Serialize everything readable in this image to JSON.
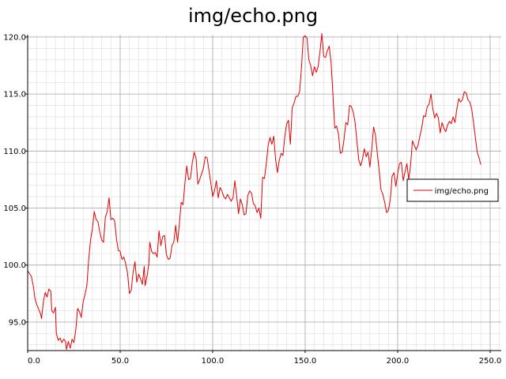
{
  "chart_data": {
    "type": "line",
    "title": "img/echo.png",
    "xlabel": "",
    "ylabel": "",
    "xlim": [
      0,
      256
    ],
    "ylim": [
      92.5,
      120.2
    ],
    "grid": true,
    "legend_position": "right",
    "x_ticks": [
      {
        "value": 0,
        "label": "0.0"
      },
      {
        "value": 50,
        "label": "50.0"
      },
      {
        "value": 100,
        "label": "100.0"
      },
      {
        "value": 150,
        "label": "150.0"
      },
      {
        "value": 200,
        "label": "200.0"
      },
      {
        "value": 250,
        "label": "250.0"
      }
    ],
    "y_ticks": [
      {
        "value": 95,
        "label": "95.0"
      },
      {
        "value": 100,
        "label": "100.0"
      },
      {
        "value": 105,
        "label": "105.0"
      },
      {
        "value": 110,
        "label": "110.0"
      },
      {
        "value": 115,
        "label": "115.0"
      },
      {
        "value": 120,
        "label": "120.0"
      }
    ],
    "series": [
      {
        "name": "img/echo.png",
        "color": "#e00000",
        "points": [
          [
            0,
            99.5
          ],
          [
            2,
            99.0
          ],
          [
            3,
            98.2
          ],
          [
            4,
            97.0
          ],
          [
            5,
            96.5
          ],
          [
            7,
            95.7
          ],
          [
            7.5,
            95.3
          ],
          [
            8.5,
            96.8
          ],
          [
            9.5,
            97.6
          ],
          [
            10.5,
            97.2
          ],
          [
            11.5,
            97.9
          ],
          [
            12.5,
            97.7
          ],
          [
            13,
            96.0
          ],
          [
            14,
            95.8
          ],
          [
            15,
            96.3
          ],
          [
            15.5,
            94.0
          ],
          [
            16.5,
            93.4
          ],
          [
            17.5,
            93.6
          ],
          [
            18.5,
            93.2
          ],
          [
            19.5,
            93.5
          ],
          [
            20.5,
            93.3
          ],
          [
            21,
            92.6
          ],
          [
            22,
            93.3
          ],
          [
            23,
            92.7
          ],
          [
            24,
            93.5
          ],
          [
            25,
            93.2
          ],
          [
            26,
            94.3
          ],
          [
            27,
            96.2
          ],
          [
            28,
            95.9
          ],
          [
            29,
            95.4
          ],
          [
            30,
            96.8
          ],
          [
            31,
            97.4
          ],
          [
            32,
            98.2
          ],
          [
            33,
            100.5
          ],
          [
            34,
            102.2
          ],
          [
            35,
            103.2
          ],
          [
            36,
            104.7
          ],
          [
            37,
            104.0
          ],
          [
            38,
            103.8
          ],
          [
            39,
            102.9
          ],
          [
            40,
            102.2
          ],
          [
            41,
            102.0
          ],
          [
            42,
            104.2
          ],
          [
            43,
            104.7
          ],
          [
            44,
            105.9
          ],
          [
            45,
            104.0
          ],
          [
            46,
            104.1
          ],
          [
            47,
            103.9
          ],
          [
            48,
            102.3
          ],
          [
            49,
            101.3
          ],
          [
            50,
            101.2
          ],
          [
            51,
            100.5
          ],
          [
            52,
            100.7
          ],
          [
            53,
            100.1
          ],
          [
            54,
            99.3
          ],
          [
            55,
            97.5
          ],
          [
            56,
            97.8
          ],
          [
            57,
            99.4
          ],
          [
            58,
            100.3
          ],
          [
            59,
            98.5
          ],
          [
            60,
            99.2
          ],
          [
            61,
            98.8
          ],
          [
            62,
            98.3
          ],
          [
            63,
            99.9
          ],
          [
            63.5,
            98.2
          ],
          [
            64.5,
            99.0
          ],
          [
            65.5,
            100.1
          ],
          [
            66,
            102.0
          ],
          [
            67,
            101.2
          ],
          [
            68,
            101.0
          ],
          [
            69,
            101.1
          ],
          [
            70,
            100.7
          ],
          [
            71,
            103.0
          ],
          [
            72,
            101.7
          ],
          [
            73,
            102.5
          ],
          [
            74,
            102.6
          ],
          [
            75,
            100.9
          ],
          [
            76,
            100.5
          ],
          [
            77,
            100.6
          ],
          [
            78,
            101.7
          ],
          [
            79,
            102.0
          ],
          [
            80,
            103.5
          ],
          [
            81,
            102.0
          ],
          [
            82,
            103.6
          ],
          [
            83,
            105.5
          ],
          [
            84,
            105.3
          ],
          [
            85,
            107.2
          ],
          [
            86,
            108.7
          ],
          [
            87,
            107.5
          ],
          [
            88,
            107.6
          ],
          [
            89,
            109.0
          ],
          [
            90,
            109.9
          ],
          [
            91,
            109.4
          ],
          [
            92,
            107.1
          ],
          [
            93,
            107.5
          ],
          [
            94,
            108.0
          ],
          [
            95,
            108.5
          ],
          [
            96,
            109.5
          ],
          [
            97,
            109.4
          ],
          [
            98,
            108.3
          ],
          [
            99,
            107.2
          ],
          [
            100,
            106.0
          ],
          [
            101,
            106.5
          ],
          [
            102,
            107.4
          ],
          [
            103,
            105.9
          ],
          [
            104,
            106.8
          ],
          [
            105,
            106.5
          ],
          [
            106,
            106.0
          ],
          [
            107,
            105.8
          ],
          [
            108,
            106.2
          ],
          [
            109,
            105.9
          ],
          [
            110,
            105.6
          ],
          [
            111,
            105.9
          ],
          [
            112,
            107.4
          ],
          [
            113,
            106.0
          ],
          [
            114,
            104.5
          ],
          [
            115,
            105.8
          ],
          [
            116,
            105.3
          ],
          [
            117,
            104.4
          ],
          [
            118,
            104.5
          ],
          [
            119,
            106.1
          ],
          [
            120,
            106.5
          ],
          [
            121,
            106.3
          ],
          [
            122,
            105.4
          ],
          [
            123,
            105.2
          ],
          [
            124,
            104.6
          ],
          [
            125,
            105.0
          ],
          [
            126,
            104.1
          ],
          [
            127,
            107.7
          ],
          [
            128,
            107.6
          ],
          [
            129,
            108.9
          ],
          [
            130,
            110.5
          ],
          [
            131,
            111.2
          ],
          [
            132,
            110.6
          ],
          [
            133,
            111.3
          ],
          [
            134,
            109.3
          ],
          [
            135,
            108.1
          ],
          [
            136,
            109.2
          ],
          [
            137,
            109.8
          ],
          [
            138,
            109.6
          ],
          [
            139,
            111.3
          ],
          [
            140,
            112.4
          ],
          [
            141,
            112.7
          ],
          [
            142,
            110.6
          ],
          [
            143,
            113.8
          ],
          [
            144,
            114.2
          ],
          [
            145,
            114.8
          ],
          [
            146,
            114.8
          ],
          [
            147,
            115.2
          ],
          [
            148,
            117.3
          ],
          [
            149,
            120.0
          ],
          [
            150,
            120.1
          ],
          [
            151,
            119.9
          ],
          [
            152,
            118.0
          ],
          [
            153,
            117.5
          ],
          [
            154,
            116.6
          ],
          [
            155,
            117.4
          ],
          [
            156,
            116.9
          ],
          [
            157,
            117.4
          ],
          [
            158,
            118.7
          ],
          [
            159,
            120.3
          ],
          [
            160,
            118.3
          ],
          [
            161,
            118.2
          ],
          [
            162,
            118.8
          ],
          [
            163,
            119.2
          ],
          [
            164,
            117.8
          ],
          [
            165,
            115.0
          ],
          [
            166,
            112.0
          ],
          [
            167,
            112.2
          ],
          [
            168,
            111.5
          ],
          [
            169,
            109.8
          ],
          [
            170,
            109.9
          ],
          [
            171,
            111.0
          ],
          [
            172,
            112.5
          ],
          [
            173,
            112.3
          ],
          [
            174,
            114.0
          ],
          [
            175,
            113.9
          ],
          [
            176,
            113.4
          ],
          [
            177,
            112.5
          ],
          [
            178,
            110.8
          ],
          [
            179,
            109.2
          ],
          [
            180,
            108.7
          ],
          [
            181,
            109.3
          ],
          [
            182,
            110.2
          ],
          [
            183,
            109.5
          ],
          [
            184,
            109.9
          ],
          [
            185,
            108.6
          ],
          [
            186,
            110.2
          ],
          [
            187,
            112.1
          ],
          [
            188,
            111.4
          ],
          [
            189,
            109.8
          ],
          [
            190,
            108.3
          ],
          [
            191,
            106.6
          ],
          [
            192,
            106.2
          ],
          [
            193,
            105.5
          ],
          [
            194,
            104.6
          ],
          [
            195,
            104.8
          ],
          [
            196,
            105.7
          ],
          [
            197,
            107.8
          ],
          [
            198,
            108.1
          ],
          [
            199,
            106.9
          ],
          [
            200,
            108.0
          ],
          [
            201,
            108.9
          ],
          [
            202,
            109.0
          ],
          [
            203,
            107.4
          ],
          [
            204,
            108.2
          ],
          [
            205,
            108.9
          ],
          [
            206,
            107.5
          ],
          [
            207,
            108.8
          ],
          [
            208,
            110.9
          ],
          [
            209,
            110.5
          ],
          [
            210,
            110.1
          ],
          [
            211,
            110.5
          ],
          [
            212,
            111.3
          ],
          [
            213,
            112.0
          ],
          [
            214,
            113.1
          ],
          [
            215,
            113.0
          ],
          [
            216,
            113.9
          ],
          [
            217,
            114.1
          ],
          [
            218,
            115.0
          ],
          [
            219,
            113.7
          ],
          [
            220,
            112.9
          ],
          [
            221,
            113.3
          ],
          [
            222,
            112.9
          ],
          [
            223,
            111.6
          ],
          [
            224,
            112.5
          ],
          [
            225,
            112.0
          ],
          [
            226,
            111.7
          ],
          [
            227,
            112.3
          ],
          [
            228,
            112.6
          ],
          [
            229,
            112.4
          ],
          [
            230,
            113.0
          ],
          [
            231,
            112.5
          ],
          [
            232,
            113.7
          ],
          [
            233,
            114.6
          ],
          [
            234,
            114.3
          ],
          [
            235,
            114.5
          ],
          [
            236,
            115.2
          ],
          [
            237,
            115.1
          ],
          [
            238,
            114.5
          ],
          [
            239,
            114.3
          ],
          [
            240,
            113.7
          ],
          [
            241,
            112.5
          ],
          [
            242,
            111.2
          ],
          [
            243,
            109.9
          ],
          [
            244,
            109.4
          ],
          [
            245,
            108.8
          ]
        ]
      }
    ]
  }
}
